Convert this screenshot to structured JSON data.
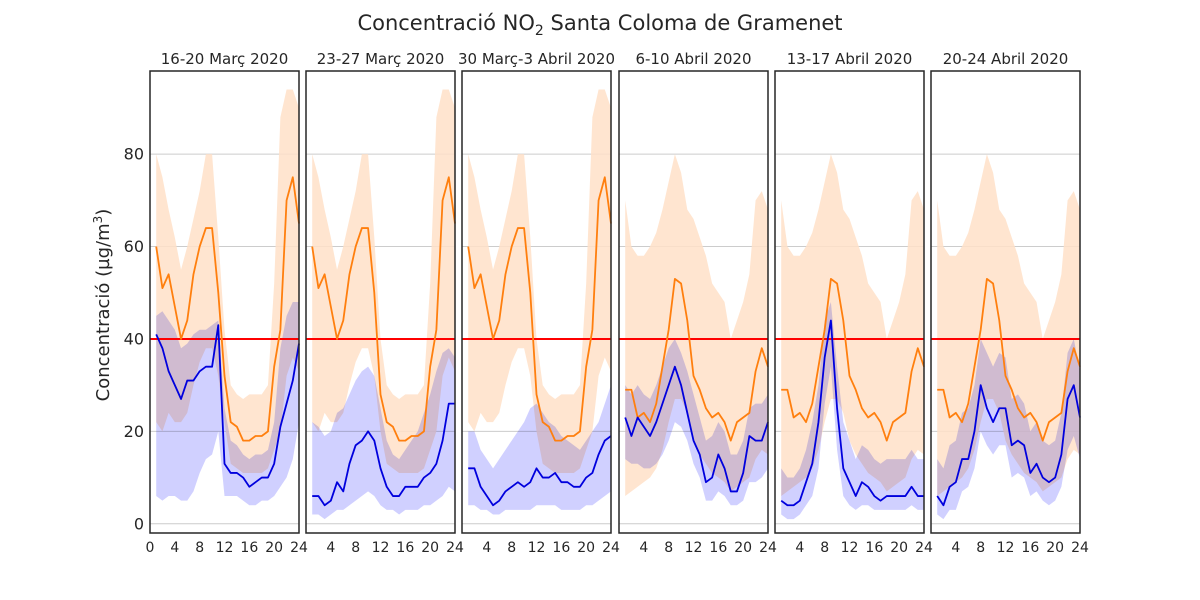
{
  "figure": {
    "title_main": "Concentració NO",
    "title_sub": "2",
    "title_rest": " Santa Coloma de Gramenet",
    "ylabel_main": "Concentració (µg/m",
    "ylabel_sup": "3",
    "ylabel_end": ")"
  },
  "chart_data": {
    "type": "line",
    "ylim": [
      -2,
      98
    ],
    "xlim": [
      0,
      24
    ],
    "yticks": [
      0,
      20,
      40,
      60,
      80
    ],
    "xticks": [
      0,
      4,
      8,
      12,
      16,
      20,
      24
    ],
    "grid": "horizontal",
    "limit_value": 40,
    "colors": {
      "reference_line": "#ff7f0e",
      "reference_band": "#ffe0c8",
      "period_line": "#0000dd",
      "period_band": "#c4c4ff",
      "limit_line": "#ff0000"
    },
    "panels": [
      {
        "title": "16-20 Març 2020",
        "reference": [
          60,
          51,
          54,
          47,
          40,
          44,
          54,
          60,
          64,
          64,
          50,
          32,
          22,
          21,
          18,
          18,
          19,
          19,
          20,
          34,
          42,
          70,
          75,
          65
        ],
        "reference_low": [
          22,
          20,
          24,
          22,
          22,
          24,
          30,
          35,
          38,
          38,
          32,
          22,
          13,
          12,
          11,
          11,
          11,
          11,
          12,
          16,
          20,
          32,
          36,
          33
        ],
        "reference_high": [
          80,
          75,
          68,
          62,
          55,
          60,
          66,
          72,
          80,
          80,
          62,
          42,
          30,
          28,
          27,
          28,
          28,
          28,
          30,
          52,
          88,
          94,
          94,
          90
        ],
        "period": [
          41,
          38,
          33,
          30,
          27,
          31,
          31,
          33,
          34,
          34,
          43,
          13,
          11,
          11,
          10,
          8,
          9,
          10,
          10,
          13,
          21,
          26,
          31,
          39
        ],
        "period_low": [
          6,
          5,
          6,
          6,
          5,
          5,
          7,
          11,
          14,
          15,
          20,
          6,
          6,
          6,
          5,
          4,
          4,
          5,
          5,
          6,
          8,
          10,
          14,
          22
        ],
        "period_high": [
          45,
          46,
          44,
          42,
          38,
          39,
          41,
          42,
          42,
          43,
          44,
          25,
          18,
          17,
          15,
          14,
          15,
          15,
          16,
          22,
          38,
          45,
          48,
          48
        ]
      },
      {
        "title": "23-27 Març 2020",
        "reference": [
          60,
          51,
          54,
          47,
          40,
          44,
          54,
          60,
          64,
          64,
          50,
          28,
          22,
          21,
          18,
          18,
          19,
          19,
          20,
          34,
          42,
          70,
          75,
          65
        ],
        "reference_low": [
          22,
          20,
          24,
          22,
          22,
          24,
          30,
          35,
          38,
          38,
          32,
          20,
          13,
          12,
          11,
          11,
          11,
          11,
          12,
          16,
          20,
          32,
          36,
          33
        ],
        "reference_high": [
          80,
          75,
          68,
          62,
          55,
          60,
          66,
          72,
          80,
          80,
          62,
          40,
          30,
          28,
          27,
          28,
          28,
          28,
          30,
          52,
          88,
          94,
          94,
          90
        ],
        "period": [
          6,
          6,
          4,
          5,
          9,
          7,
          13,
          17,
          18,
          20,
          18,
          12,
          8,
          6,
          6,
          8,
          8,
          8,
          10,
          11,
          13,
          18,
          26,
          26
        ],
        "period_low": [
          2,
          2,
          1,
          2,
          3,
          3,
          4,
          5,
          6,
          7,
          6,
          4,
          3,
          3,
          2,
          3,
          3,
          3,
          4,
          4,
          5,
          6,
          8,
          7
        ],
        "period_high": [
          22,
          21,
          19,
          20,
          24,
          25,
          28,
          31,
          33,
          34,
          32,
          25,
          18,
          15,
          14,
          16,
          18,
          20,
          24,
          28,
          33,
          37,
          38,
          36
        ]
      },
      {
        "title": "30 Març-3 Abril 2020",
        "reference": [
          60,
          51,
          54,
          47,
          40,
          44,
          54,
          60,
          64,
          64,
          50,
          28,
          22,
          21,
          18,
          18,
          19,
          19,
          20,
          34,
          42,
          70,
          75,
          65
        ],
        "reference_low": [
          22,
          20,
          24,
          22,
          22,
          24,
          30,
          35,
          38,
          38,
          32,
          20,
          13,
          12,
          11,
          11,
          11,
          11,
          12,
          16,
          20,
          32,
          36,
          33
        ],
        "reference_high": [
          80,
          75,
          68,
          62,
          55,
          60,
          66,
          72,
          80,
          80,
          62,
          40,
          30,
          28,
          27,
          28,
          28,
          28,
          30,
          52,
          88,
          94,
          94,
          90
        ],
        "period": [
          12,
          12,
          8,
          6,
          4,
          5,
          7,
          8,
          9,
          8,
          9,
          12,
          10,
          10,
          11,
          9,
          9,
          8,
          8,
          10,
          11,
          15,
          18,
          19
        ],
        "period_low": [
          4,
          4,
          3,
          3,
          2,
          2,
          3,
          3,
          3,
          3,
          3,
          4,
          4,
          4,
          4,
          3,
          3,
          3,
          3,
          4,
          4,
          5,
          6,
          7
        ],
        "period_high": [
          20,
          20,
          16,
          14,
          12,
          14,
          16,
          18,
          20,
          22,
          25,
          26,
          24,
          22,
          21,
          19,
          18,
          17,
          16,
          18,
          20,
          22,
          26,
          30
        ]
      },
      {
        "title": "6-10 Abril 2020",
        "reference": [
          29,
          29,
          23,
          24,
          22,
          26,
          34,
          42,
          53,
          52,
          44,
          32,
          29,
          25,
          23,
          24,
          22,
          18,
          22,
          23,
          24,
          33,
          38,
          34
        ],
        "reference_low": [
          6,
          7,
          8,
          9,
          10,
          12,
          16,
          22,
          27,
          27,
          24,
          18,
          15,
          13,
          11,
          10,
          9,
          7,
          8,
          9,
          10,
          14,
          16,
          15
        ],
        "reference_high": [
          70,
          60,
          58,
          58,
          60,
          63,
          68,
          74,
          80,
          76,
          68,
          66,
          62,
          58,
          52,
          50,
          48,
          40,
          44,
          48,
          54,
          70,
          72,
          68
        ],
        "period": [
          23,
          19,
          23,
          21,
          19,
          22,
          26,
          30,
          34,
          30,
          24,
          18,
          15,
          9,
          10,
          15,
          12,
          7,
          7,
          11,
          19,
          18,
          18,
          22
        ],
        "period_low": [
          14,
          13,
          13,
          12,
          12,
          13,
          15,
          18,
          22,
          21,
          18,
          13,
          10,
          5,
          5,
          7,
          6,
          4,
          4,
          5,
          9,
          9,
          10,
          12
        ],
        "period_high": [
          30,
          28,
          30,
          28,
          27,
          30,
          34,
          38,
          40,
          37,
          33,
          28,
          23,
          18,
          19,
          22,
          20,
          15,
          15,
          18,
          25,
          26,
          26,
          28
        ]
      },
      {
        "title": "13-17 Abril 2020",
        "reference": [
          29,
          29,
          23,
          24,
          22,
          26,
          34,
          42,
          53,
          52,
          44,
          32,
          29,
          25,
          23,
          24,
          22,
          18,
          22,
          23,
          24,
          33,
          38,
          34
        ],
        "reference_low": [
          6,
          7,
          8,
          9,
          10,
          12,
          16,
          22,
          27,
          27,
          24,
          18,
          15,
          13,
          11,
          10,
          9,
          7,
          8,
          9,
          10,
          14,
          16,
          15
        ],
        "reference_high": [
          70,
          60,
          58,
          58,
          60,
          63,
          68,
          74,
          80,
          76,
          68,
          66,
          62,
          58,
          52,
          50,
          48,
          40,
          44,
          48,
          54,
          70,
          72,
          68
        ],
        "period": [
          5,
          4,
          4,
          5,
          9,
          13,
          22,
          36,
          44,
          25,
          12,
          9,
          6,
          9,
          8,
          6,
          5,
          6,
          6,
          6,
          6,
          8,
          6,
          6
        ],
        "period_low": [
          2,
          1,
          1,
          2,
          4,
          6,
          12,
          26,
          34,
          16,
          6,
          4,
          3,
          4,
          4,
          3,
          3,
          3,
          3,
          3,
          3,
          4,
          3,
          3
        ],
        "period_high": [
          12,
          10,
          10,
          12,
          16,
          22,
          30,
          44,
          48,
          34,
          22,
          18,
          14,
          17,
          16,
          14,
          13,
          14,
          14,
          14,
          14,
          16,
          14,
          14
        ]
      },
      {
        "title": "20-24 Abril 2020",
        "reference": [
          29,
          29,
          23,
          24,
          22,
          26,
          34,
          42,
          53,
          52,
          44,
          32,
          29,
          25,
          23,
          24,
          22,
          18,
          22,
          23,
          24,
          33,
          38,
          34
        ],
        "reference_low": [
          6,
          7,
          8,
          9,
          10,
          12,
          16,
          22,
          27,
          27,
          24,
          18,
          15,
          13,
          11,
          10,
          9,
          7,
          8,
          9,
          10,
          14,
          16,
          15
        ],
        "reference_high": [
          70,
          60,
          58,
          58,
          60,
          63,
          68,
          74,
          80,
          76,
          68,
          66,
          62,
          58,
          52,
          50,
          48,
          40,
          44,
          48,
          54,
          70,
          72,
          68
        ],
        "period": [
          6,
          4,
          8,
          9,
          14,
          14,
          20,
          30,
          25,
          22,
          25,
          25,
          17,
          18,
          17,
          11,
          13,
          10,
          9,
          10,
          15,
          27,
          30,
          23
        ],
        "period_low": [
          2,
          1,
          3,
          3,
          7,
          8,
          12,
          20,
          17,
          15,
          17,
          17,
          10,
          11,
          10,
          6,
          7,
          5,
          4,
          5,
          8,
          16,
          19,
          14
        ],
        "period_high": [
          14,
          12,
          17,
          18,
          24,
          25,
          30,
          40,
          37,
          34,
          37,
          36,
          27,
          28,
          26,
          20,
          22,
          18,
          17,
          18,
          24,
          37,
          40,
          33
        ]
      }
    ]
  }
}
